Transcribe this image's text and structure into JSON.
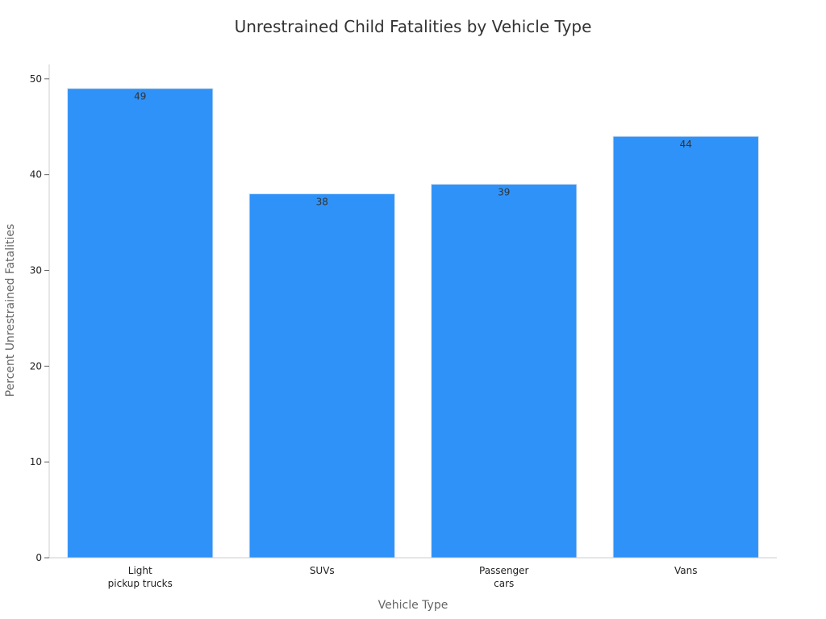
{
  "chart_data": {
    "type": "bar",
    "title": "Unrestrained Child Fatalities by Vehicle Type",
    "xlabel": "Vehicle Type",
    "ylabel": "Percent Unrestrained Fatalities",
    "categories": [
      [
        "Light",
        "pickup trucks"
      ],
      [
        "SUVs"
      ],
      [
        "Passenger",
        "cars"
      ],
      [
        "Vans"
      ]
    ],
    "values": [
      49,
      38,
      39,
      44
    ],
    "data_labels": [
      "49",
      "38",
      "39",
      "44"
    ],
    "ylim": [
      0,
      51.5
    ],
    "yticks": [
      0,
      10,
      20,
      30,
      40,
      50
    ],
    "bar_color": "#2f92f9",
    "grid": false,
    "legend": "none"
  }
}
